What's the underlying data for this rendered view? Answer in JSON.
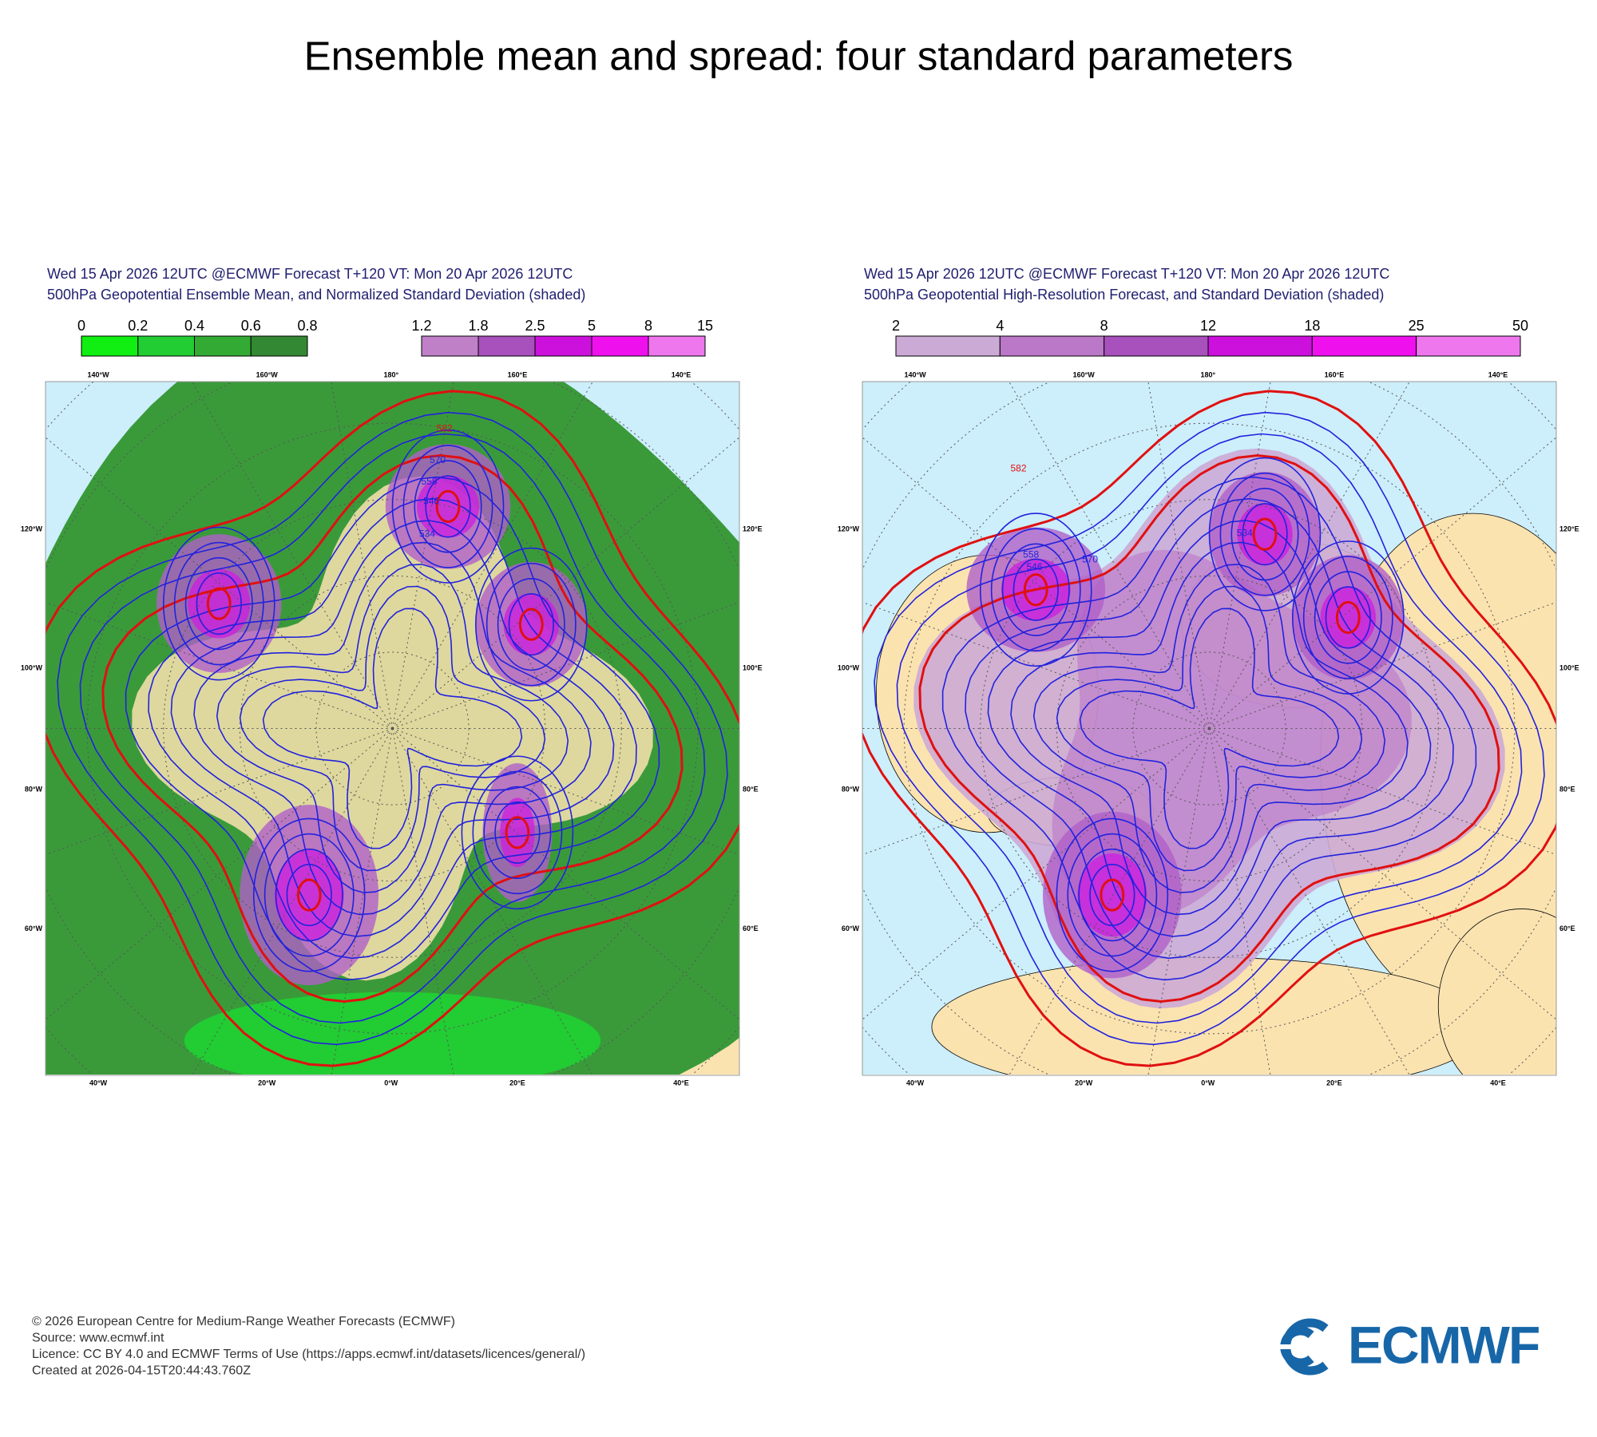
{
  "title": "Ensemble mean and spread: four standard parameters",
  "panels": [
    {
      "header": [
        "Wed 15 Apr 2026 12UTC @ECMWF Forecast T+120 VT: Mon 20 Apr 2026 12UTC",
        "500hPa Geopotential Ensemble Mean, and Normalized Standard Deviation (shaded)"
      ],
      "colorbars": [
        {
          "ticks": [
            0,
            0.2,
            0.4,
            0.6,
            0.8
          ],
          "colors": [
            "#11ee11",
            "#22cc33",
            "#33aa33",
            "#338833"
          ]
        },
        {
          "ticks": [
            1.2,
            1.8,
            2.5,
            5,
            8,
            15
          ],
          "colors": [
            "#c080c8",
            "#a850bc",
            "#cc11dd",
            "#ee11ee",
            "#ee77ee"
          ]
        }
      ],
      "lon_top": [
        "140°W",
        "160°W",
        "180°",
        "160°E",
        "140°E"
      ],
      "lon_bottom": [
        "40°W",
        "20°W",
        "0°W",
        "20°E",
        "40°E"
      ],
      "lon_left": [
        "120°W",
        "100°W",
        "80°W",
        "60°W"
      ],
      "lon_right": [
        "120°E",
        "100°E",
        "80°E",
        "60°E"
      ],
      "contour_labels": [
        "582",
        "570",
        "558",
        "546",
        "534"
      ]
    },
    {
      "header": [
        "Wed 15 Apr 2026 12UTC @ECMWF Forecast T+120 VT: Mon 20 Apr 2026 12UTC",
        "500hPa Geopotential High-Resolution Forecast, and Standard Deviation (shaded)"
      ],
      "colorbars": [
        {
          "ticks": [
            2,
            4,
            8,
            12,
            18,
            25,
            50
          ],
          "colors": [
            "#ccaad6",
            "#bb77c8",
            "#a850bc",
            "#cc11dd",
            "#ee11ee",
            "#ee77ee"
          ]
        }
      ],
      "lon_top": [
        "140°W",
        "160°W",
        "180°",
        "160°E",
        "140°E"
      ],
      "lon_bottom": [
        "40°W",
        "20°W",
        "0°W",
        "20°E",
        "40°E"
      ],
      "lon_left": [
        "120°W",
        "100°W",
        "80°W",
        "60°W"
      ],
      "lon_right": [
        "120°E",
        "100°E",
        "80°E",
        "60°E"
      ],
      "contour_labels": [
        "582",
        "570",
        "558",
        "546",
        "534"
      ]
    }
  ],
  "footer": [
    "© 2026 European Centre for Medium-Range Weather Forecasts (ECMWF)",
    "Source: www.ecmwf.int",
    "Licence: CC BY 4.0 and ECMWF Terms of Use (https://apps.ecmwf.int/datasets/licences/general/)",
    "Created at 2026-04-15T20:44:43.760Z"
  ],
  "logo": "ECMWF"
}
